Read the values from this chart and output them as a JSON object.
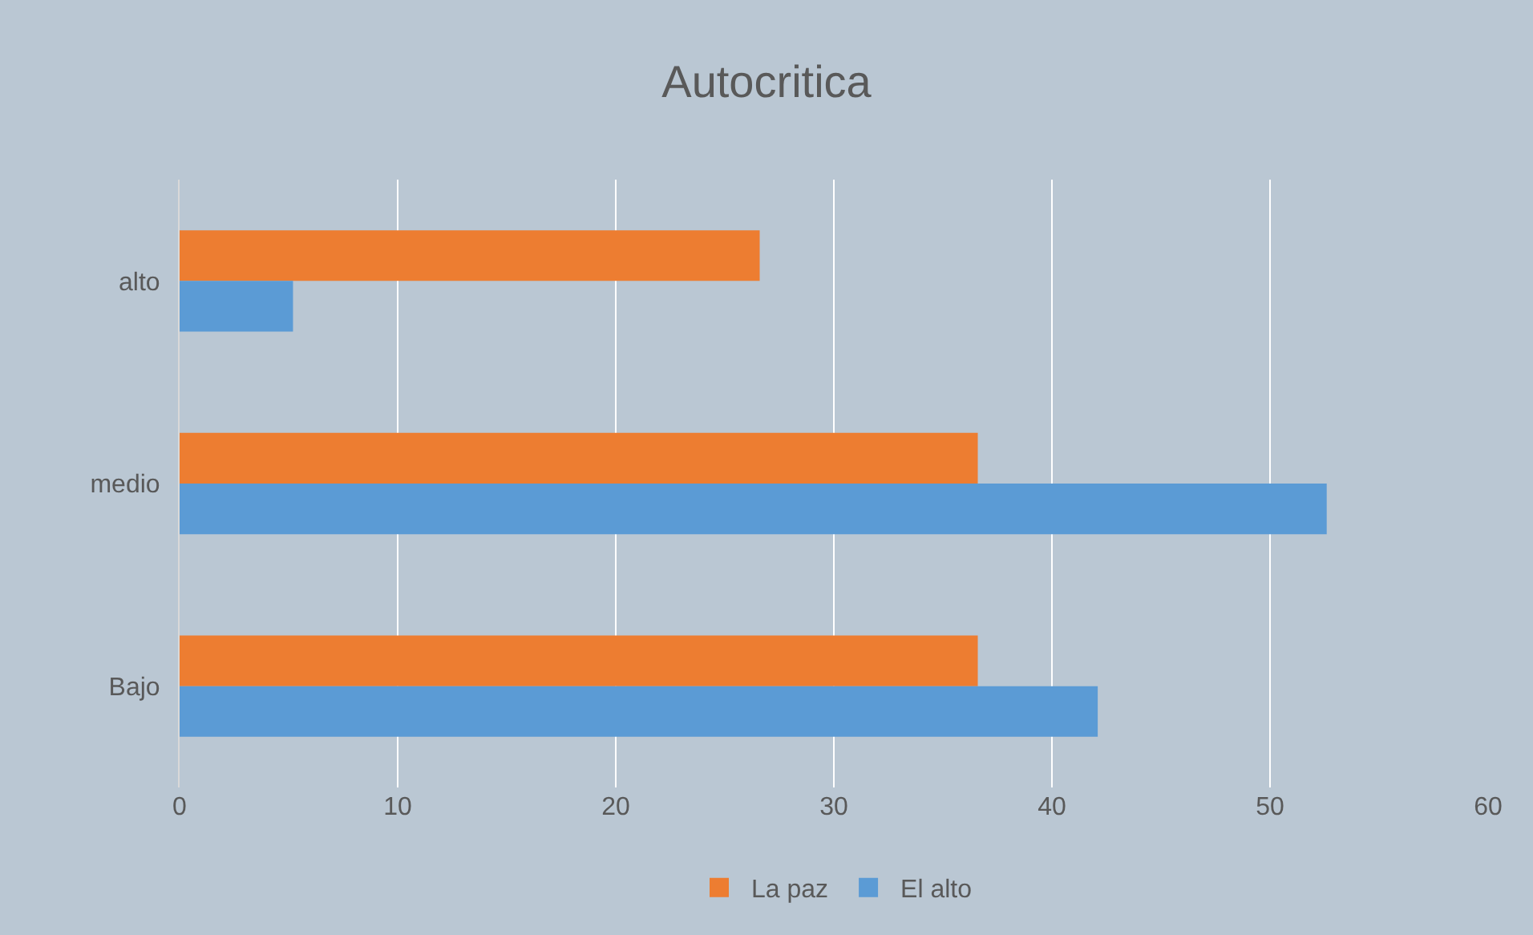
{
  "chart_data": {
    "type": "bar",
    "title": "Autocritica",
    "orientation": "horizontal",
    "categories": [
      "alto",
      "medio",
      "Bajo"
    ],
    "series": [
      {
        "name": "La paz",
        "color": "#ed7d31",
        "values": [
          26.6,
          36.6,
          36.6
        ]
      },
      {
        "name": "El alto",
        "color": "#5b9bd5",
        "values": [
          5.2,
          52.6,
          42.1
        ]
      }
    ],
    "xlim": [
      0,
      60
    ],
    "xticks": [
      0,
      10,
      20,
      30,
      40,
      50,
      60
    ],
    "grid": "x",
    "legend": "bottom"
  }
}
